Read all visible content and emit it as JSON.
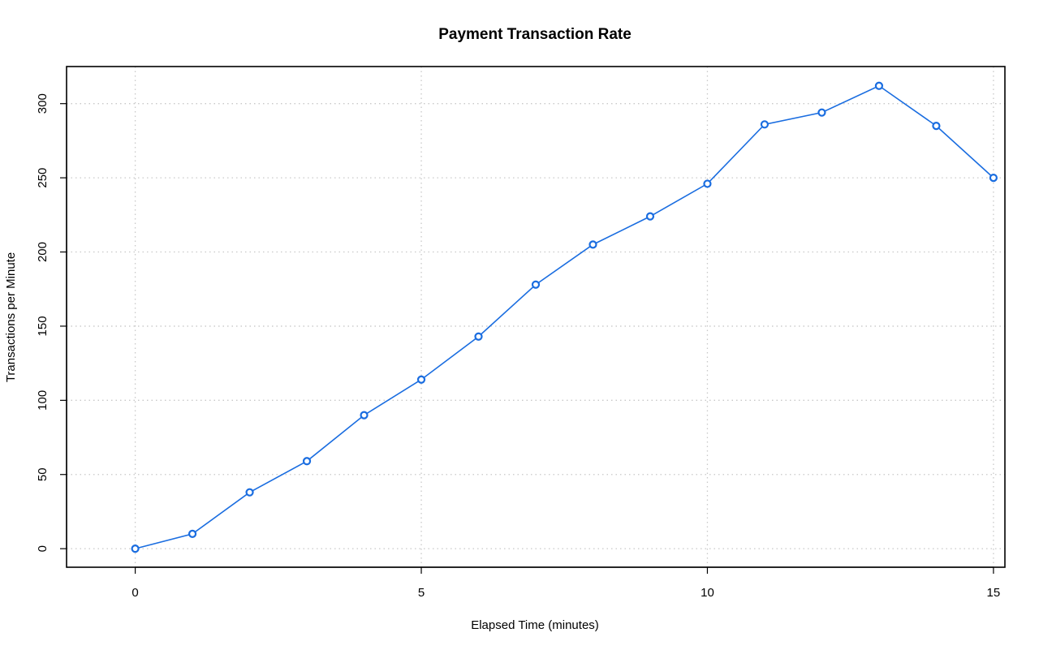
{
  "chart_data": {
    "type": "line",
    "title": "Payment Transaction Rate",
    "xlabel": "Elapsed Time (minutes)",
    "ylabel": "Transactions per Minute",
    "xlim": [
      -1.2,
      15.2
    ],
    "ylim": [
      -12.5,
      325
    ],
    "xticks": [
      0,
      5,
      10,
      15
    ],
    "yticks": [
      0,
      50,
      100,
      150,
      200,
      250,
      300
    ],
    "grid": true,
    "x": [
      0,
      1,
      2,
      3,
      4,
      5,
      6,
      7,
      8,
      9,
      10,
      11,
      12,
      13,
      14,
      15
    ],
    "series": [
      {
        "values": [
          0,
          10,
          38,
          59,
          90,
          114,
          143,
          178,
          205,
          224,
          246,
          286,
          294,
          312,
          285,
          250
        ],
        "color": "#1a6de0"
      }
    ]
  }
}
